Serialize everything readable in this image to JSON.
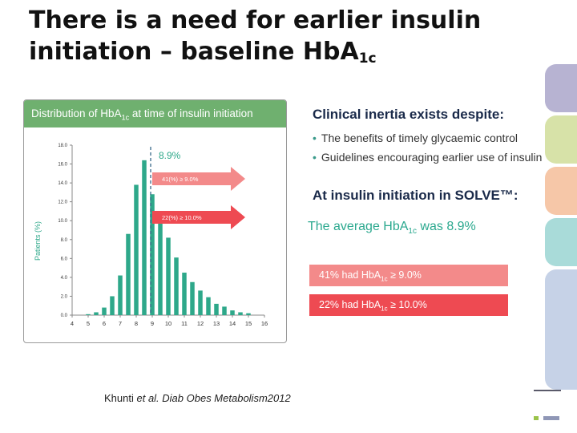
{
  "slide": {
    "title_line1": "There is a need for earlier insulin",
    "title_line2_prefix": "initiation – baseline HbA",
    "title_sub": "1c"
  },
  "chart_header": {
    "prefix": "Distribution of HbA",
    "sub": "1c",
    "suffix": " at time of insulin initiation"
  },
  "chart_data": {
    "type": "bar",
    "title": "Distribution of HbA1c at time of insulin initiation",
    "xlabel": "",
    "ylabel": "Patients (%)",
    "ylim": [
      0,
      18
    ],
    "yticks": [
      "0.0",
      "2.0",
      "4.0",
      "6.0",
      "8.0",
      "10.0",
      "12.0",
      "14.0",
      "16.0",
      "18.0"
    ],
    "xticks": [
      "4",
      "5",
      "6",
      "7",
      "8",
      "9",
      "10",
      "11",
      "12",
      "13",
      "14",
      "15",
      "16"
    ],
    "x": [
      5.0,
      5.5,
      6.0,
      6.5,
      7.0,
      7.5,
      8.0,
      8.5,
      9.0,
      9.5,
      10.0,
      10.5,
      11.0,
      11.5,
      12.0,
      12.5,
      13.0,
      13.5,
      14.0,
      14.5,
      15.0
    ],
    "values": [
      0.1,
      0.3,
      0.8,
      2.0,
      4.2,
      8.6,
      13.8,
      16.4,
      12.8,
      10.8,
      8.2,
      6.1,
      4.5,
      3.5,
      2.6,
      1.9,
      1.2,
      0.9,
      0.5,
      0.3,
      0.2
    ],
    "mean_line": {
      "value": 8.9,
      "label": "8.9%"
    },
    "annotations": [
      {
        "text": "41(%) ≥ 9.0%"
      },
      {
        "text": "22(%) ≥ 10.0%"
      }
    ],
    "colors": {
      "bar": "#2ea88a",
      "mean": "#3a6a8a",
      "arrow41": "#f38a8a",
      "arrow22": "#ee4a52"
    }
  },
  "right_panel": {
    "heading1": "Clinical inertia exists despite:",
    "bullets": [
      "The benefits of timely glycaemic control",
      "Guidelines encouraging earlier use of insulin"
    ],
    "heading2": "At insulin initiation in SOLVE™:",
    "avg_prefix": "The average HbA",
    "avg_sub": "1c",
    "avg_suffix": " was 8.9%",
    "stat1_prefix": "41% had HbA",
    "stat1_sub": "1c",
    "stat1_suffix": " ≥ 9.0%",
    "stat2_prefix": "22% had HbA",
    "stat2_sub": "1c",
    "stat2_suffix": " ≥ 10.0%"
  },
  "citation": {
    "author": "Khunti ",
    "etal": "et al. Diab Obes Metabolism",
    "year": "2012"
  },
  "colors": {
    "tabs": [
      "#b7b3d2",
      "#d7e2a8",
      "#f6c7a8",
      "#a9dbd9",
      "#c6d2e7"
    ]
  }
}
